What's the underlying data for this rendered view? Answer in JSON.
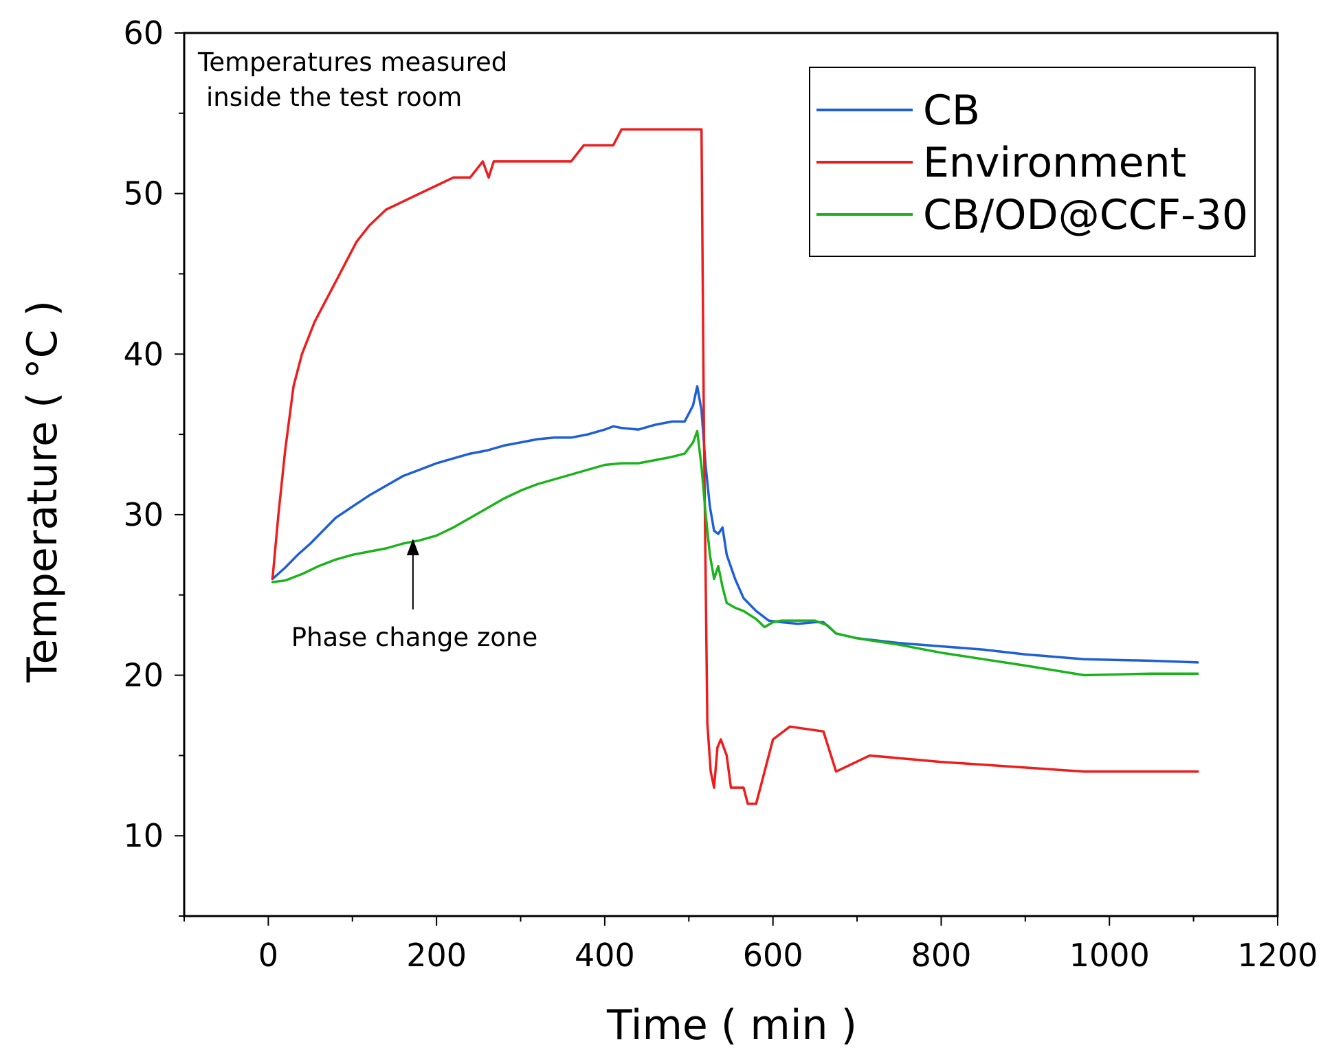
{
  "chart_data": {
    "type": "line",
    "title": "",
    "xlabel": "Time ( min )",
    "ylabel": "Temperature ( °C )",
    "xlim": [
      -100,
      1200
    ],
    "ylim": [
      5,
      60
    ],
    "xticks": [
      0,
      200,
      400,
      600,
      800,
      1000,
      1200
    ],
    "yticks": [
      10,
      20,
      30,
      40,
      50,
      60
    ],
    "grid": false,
    "legend_position": "top-right",
    "annotations": [
      {
        "id": "note",
        "lines": [
          "Temperatures measured",
          "inside the test room"
        ]
      },
      {
        "id": "phase",
        "text": "Phase change zone",
        "arrow_to": [
          172,
          28.5
        ],
        "arrow_from": [
          172,
          24.1
        ]
      }
    ],
    "series": [
      {
        "name": "CB",
        "color": "#1f5fd6",
        "x": [
          5,
          20,
          35,
          50,
          65,
          80,
          100,
          120,
          140,
          160,
          180,
          200,
          220,
          240,
          260,
          280,
          300,
          320,
          340,
          360,
          380,
          400,
          410,
          420,
          440,
          460,
          480,
          495,
          505,
          510,
          515,
          520,
          525,
          530,
          535,
          540,
          545,
          555,
          565,
          580,
          595,
          610,
          630,
          650,
          660,
          675,
          700,
          750,
          800,
          850,
          900,
          970,
          1050,
          1105
        ],
        "y": [
          26.0,
          26.7,
          27.5,
          28.2,
          29.0,
          29.8,
          30.5,
          31.2,
          31.8,
          32.4,
          32.8,
          33.2,
          33.5,
          33.8,
          34.0,
          34.3,
          34.5,
          34.7,
          34.8,
          34.8,
          35.0,
          35.3,
          35.5,
          35.4,
          35.3,
          35.6,
          35.8,
          35.8,
          36.8,
          38.0,
          36.5,
          33.0,
          30.5,
          29.0,
          28.8,
          29.2,
          27.5,
          26.0,
          24.8,
          24.0,
          23.4,
          23.3,
          23.2,
          23.3,
          23.3,
          22.6,
          22.3,
          22.0,
          21.8,
          21.6,
          21.3,
          21.0,
          20.9,
          20.8
        ]
      },
      {
        "name": "Environment",
        "color": "#ee1c1c",
        "x": [
          5,
          12,
          20,
          30,
          40,
          55,
          65,
          75,
          85,
          95,
          105,
          120,
          140,
          160,
          180,
          200,
          220,
          240,
          255,
          262,
          268,
          300,
          360,
          375,
          410,
          420,
          515,
          518,
          522,
          526,
          530,
          534,
          538,
          545,
          550,
          555,
          560,
          565,
          570,
          580,
          600,
          620,
          660,
          675,
          715,
          800,
          970,
          1105
        ],
        "y": [
          26,
          30,
          34,
          38,
          40,
          42,
          43,
          44,
          45,
          46,
          47,
          48,
          49,
          49.5,
          50,
          50.5,
          51,
          51,
          52,
          51,
          52,
          52,
          52,
          53,
          53,
          54,
          54,
          35,
          17,
          14,
          13,
          15.5,
          16,
          15,
          13,
          13,
          13,
          13,
          12,
          12,
          16,
          16.8,
          16.5,
          14,
          15,
          14.6,
          14,
          14
        ]
      },
      {
        "name": "CB/OD@CCF-30",
        "color": "#1bb31b",
        "x": [
          5,
          20,
          40,
          60,
          80,
          100,
          120,
          140,
          160,
          180,
          200,
          220,
          240,
          260,
          280,
          300,
          320,
          340,
          360,
          380,
          400,
          420,
          440,
          460,
          480,
          495,
          505,
          510,
          515,
          520,
          525,
          530,
          535,
          540,
          545,
          555,
          565,
          580,
          590,
          600,
          610,
          630,
          650,
          665,
          675,
          700,
          750,
          800,
          850,
          900,
          970,
          1050,
          1105
        ],
        "y": [
          25.8,
          25.9,
          26.3,
          26.8,
          27.2,
          27.5,
          27.7,
          27.9,
          28.2,
          28.4,
          28.7,
          29.2,
          29.8,
          30.4,
          31.0,
          31.5,
          31.9,
          32.2,
          32.5,
          32.8,
          33.1,
          33.2,
          33.2,
          33.4,
          33.6,
          33.8,
          34.5,
          35.2,
          33.0,
          30.0,
          27.5,
          26.0,
          26.8,
          25.5,
          24.5,
          24.2,
          24.0,
          23.5,
          23.0,
          23.3,
          23.4,
          23.4,
          23.4,
          23.1,
          22.6,
          22.3,
          21.9,
          21.4,
          21.0,
          20.6,
          20.0,
          20.1,
          20.1
        ]
      }
    ]
  }
}
